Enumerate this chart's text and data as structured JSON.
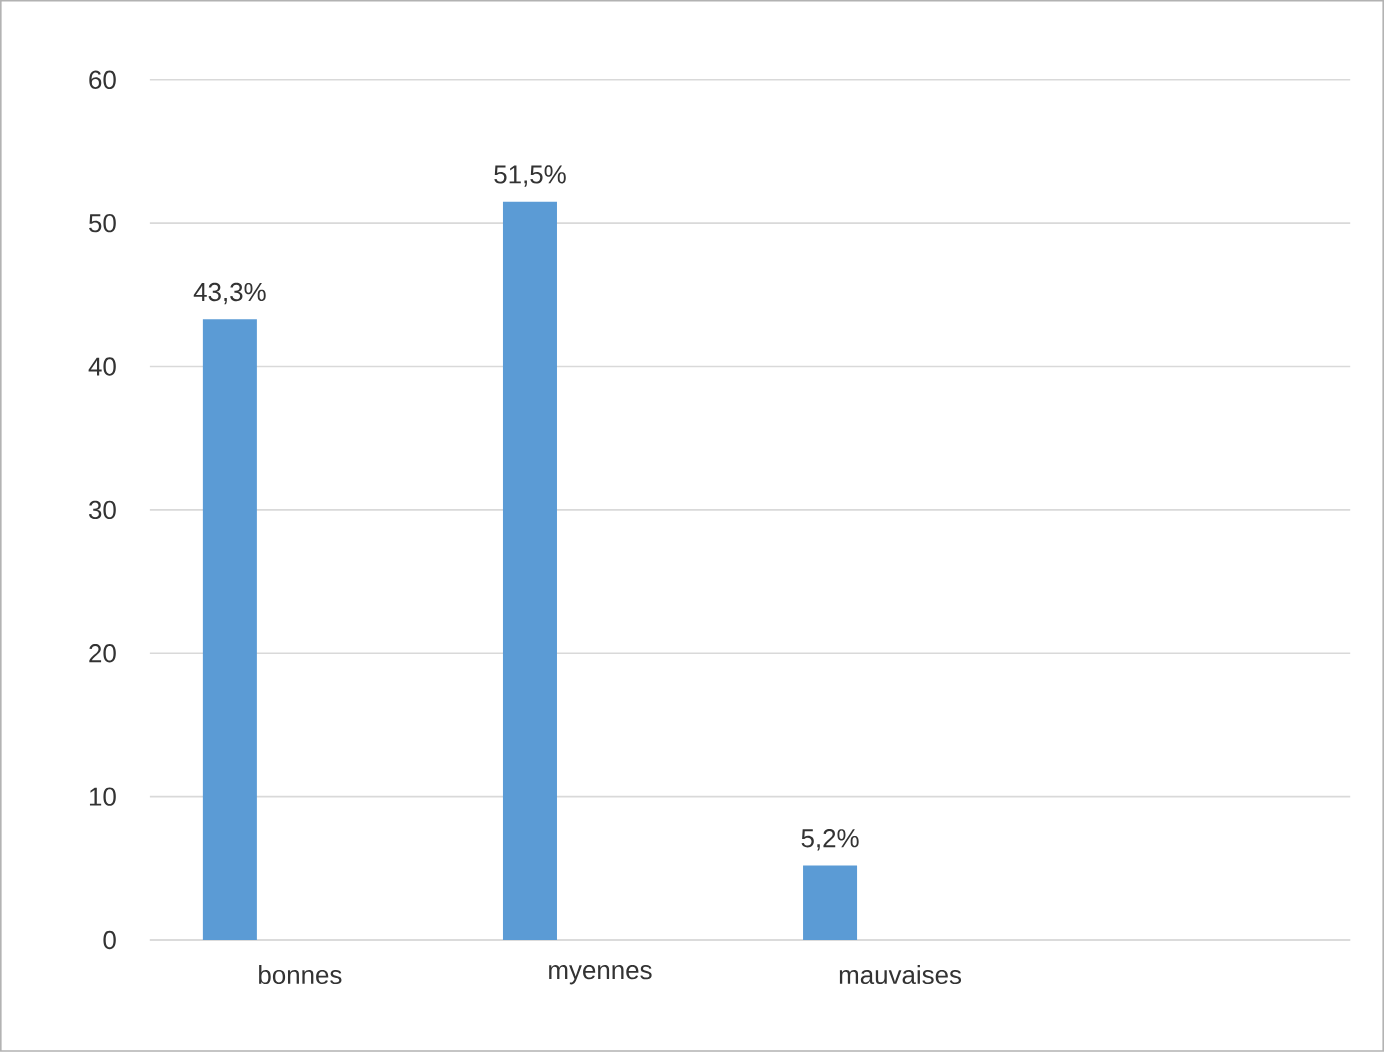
{
  "chart_data": {
    "type": "bar",
    "categories": [
      "bonnes",
      "myennes",
      "mauvaises",
      null
    ],
    "values": [
      43.3,
      51.5,
      5.2,
      null
    ],
    "value_labels": [
      "43,3%",
      "51,5%",
      "5,2%",
      null
    ],
    "color": "#5b9bd5",
    "ylim": [
      0,
      60
    ],
    "yticks": [
      0,
      10,
      20,
      30,
      40,
      50,
      60
    ],
    "grid": "y"
  }
}
